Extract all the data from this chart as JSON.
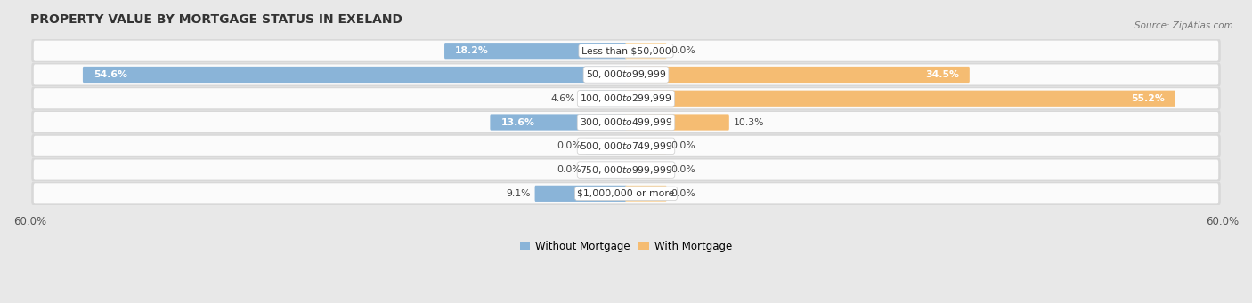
{
  "title": "PROPERTY VALUE BY MORTGAGE STATUS IN EXELAND",
  "source": "Source: ZipAtlas.com",
  "categories": [
    "Less than $50,000",
    "$50,000 to $99,999",
    "$100,000 to $299,999",
    "$300,000 to $499,999",
    "$500,000 to $749,999",
    "$750,000 to $999,999",
    "$1,000,000 or more"
  ],
  "without_mortgage": [
    18.2,
    54.6,
    4.6,
    13.6,
    0.0,
    0.0,
    9.1
  ],
  "with_mortgage": [
    0.0,
    34.5,
    55.2,
    10.3,
    0.0,
    0.0,
    0.0
  ],
  "xlim": 60.0,
  "bar_color_left": "#8ab4d8",
  "bar_color_right": "#f5bc72",
  "bar_color_left_pale": "#c5d9ee",
  "bar_color_right_pale": "#fad9a8",
  "bg_color": "#e8e8e8",
  "title_fontsize": 10,
  "label_fontsize": 7.8,
  "value_fontsize": 7.8,
  "legend_fontsize": 8.5,
  "axis_label_fontsize": 8.5
}
